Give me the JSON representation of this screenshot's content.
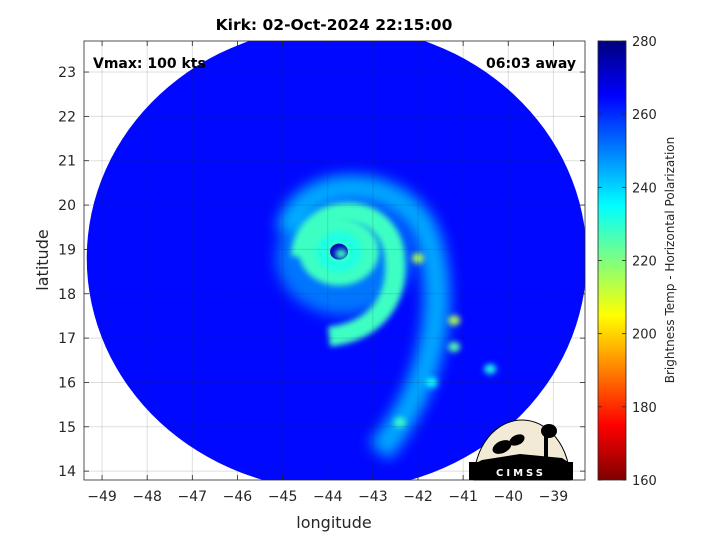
{
  "chart_data": {
    "type": "heatmap",
    "title": "Kirk: 02-Oct-2024 22:15:00",
    "annotations": {
      "vmax": "Vmax: 100 kts",
      "away": "06:03 away"
    },
    "xlabel": "longitude",
    "ylabel": "latitude",
    "xlim": [
      -49.4,
      -38.3
    ],
    "ylim": [
      13.8,
      23.7
    ],
    "x_ticks": [
      -49,
      -48,
      -47,
      -46,
      -45,
      -44,
      -43,
      -42,
      -41,
      -40,
      -39
    ],
    "y_ticks": [
      14,
      15,
      16,
      17,
      18,
      19,
      20,
      21,
      22,
      23
    ],
    "grid": true,
    "colorbar": {
      "label": "Brightness Temp - Horizontal Polarization",
      "range": [
        160,
        280
      ],
      "ticks": [
        160,
        180,
        200,
        220,
        240,
        260,
        280
      ],
      "colormap": "jet"
    },
    "swath": {
      "center": [
        -43.8,
        18.8
      ],
      "background_value": 264
    },
    "storm": {
      "eye": [
        -43.75,
        18.95
      ],
      "eye_value": 273,
      "eyewall_value": 232,
      "features": [
        {
          "x": -43.7,
          "y": 18.9,
          "value": 228
        },
        {
          "x": -42.0,
          "y": 18.8,
          "value": 215
        },
        {
          "x": -41.2,
          "y": 17.4,
          "value": 215
        },
        {
          "x": -41.2,
          "y": 16.8,
          "value": 225
        },
        {
          "x": -42.4,
          "y": 15.1,
          "value": 228
        },
        {
          "x": -40.4,
          "y": 16.3,
          "value": 232
        },
        {
          "x": -41.7,
          "y": 16.0,
          "value": 234
        }
      ]
    },
    "logo": {
      "text": "CIMSS"
    }
  }
}
